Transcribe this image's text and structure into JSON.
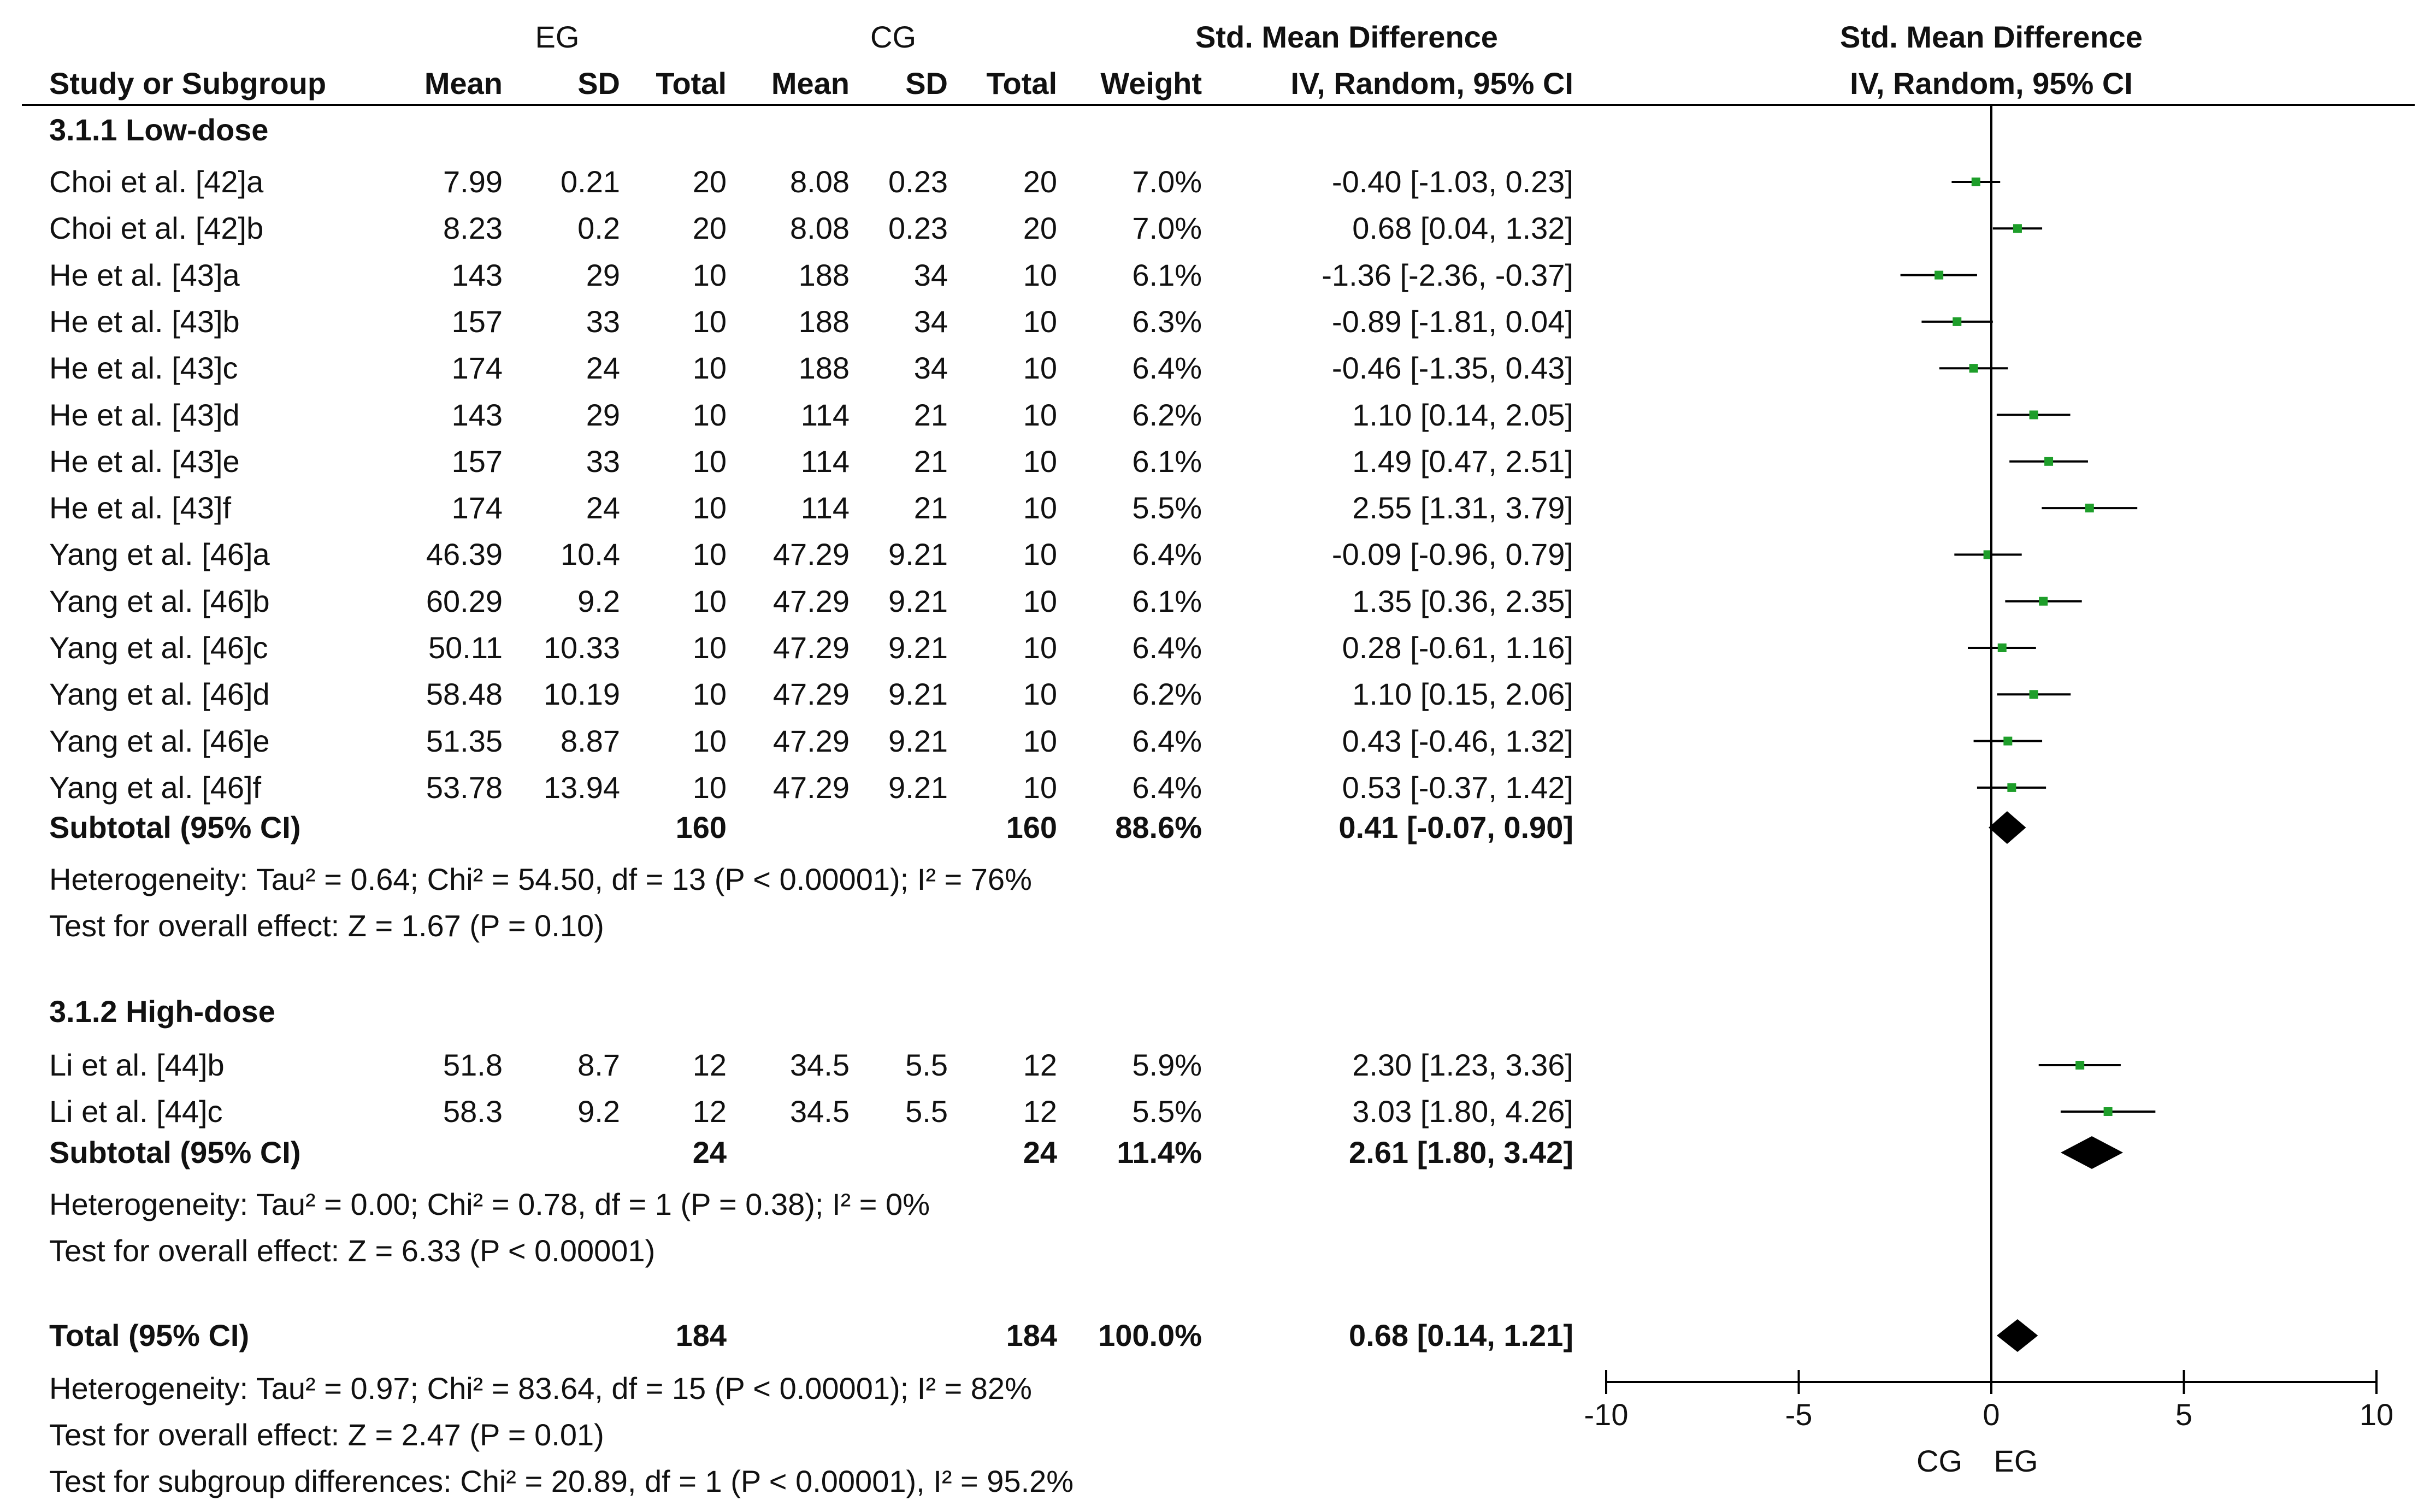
{
  "header": {
    "eg_label": "EG",
    "cg_label": "CG",
    "table_effect_title": "Std. Mean Difference",
    "table_effect_subtitle": "IV, Random, 95% CI",
    "plot_title": "Std. Mean Difference",
    "plot_subtitle": "IV, Random, 95% CI",
    "columns": [
      "Study or Subgroup",
      "Mean",
      "SD",
      "Total",
      "Mean",
      "SD",
      "Total",
      "Weight"
    ]
  },
  "groups": [
    {
      "label": "3.1.1 Low-dose",
      "studies": [
        {
          "name": "Choi et al. [42]a",
          "eg_mean": "7.99",
          "eg_sd": "0.21",
          "eg_total": "20",
          "cg_mean": "8.08",
          "cg_sd": "0.23",
          "cg_total": "20",
          "weight": "7.0%",
          "ci_text": "-0.40 [-1.03, 0.23]",
          "smd": -0.4,
          "lo": -1.03,
          "hi": 0.23
        },
        {
          "name": "Choi et al.  [42]b",
          "eg_mean": "8.23",
          "eg_sd": "0.2",
          "eg_total": "20",
          "cg_mean": "8.08",
          "cg_sd": "0.23",
          "cg_total": "20",
          "weight": "7.0%",
          "ci_text": "0.68 [0.04, 1.32]",
          "smd": 0.68,
          "lo": 0.04,
          "hi": 1.32
        },
        {
          "name": "He et al. [43]a",
          "eg_mean": "143",
          "eg_sd": "29",
          "eg_total": "10",
          "cg_mean": "188",
          "cg_sd": "34",
          "cg_total": "10",
          "weight": "6.1%",
          "ci_text": "-1.36 [-2.36, -0.37]",
          "smd": -1.36,
          "lo": -2.36,
          "hi": -0.37
        },
        {
          "name": "He et al. [43]b",
          "eg_mean": "157",
          "eg_sd": "33",
          "eg_total": "10",
          "cg_mean": "188",
          "cg_sd": "34",
          "cg_total": "10",
          "weight": "6.3%",
          "ci_text": "-0.89 [-1.81, 0.04]",
          "smd": -0.89,
          "lo": -1.81,
          "hi": 0.04
        },
        {
          "name": "He et al. [43]c",
          "eg_mean": "174",
          "eg_sd": "24",
          "eg_total": "10",
          "cg_mean": "188",
          "cg_sd": "34",
          "cg_total": "10",
          "weight": "6.4%",
          "ci_text": "-0.46 [-1.35, 0.43]",
          "smd": -0.46,
          "lo": -1.35,
          "hi": 0.43
        },
        {
          "name": "He et al. [43]d",
          "eg_mean": "143",
          "eg_sd": "29",
          "eg_total": "10",
          "cg_mean": "114",
          "cg_sd": "21",
          "cg_total": "10",
          "weight": "6.2%",
          "ci_text": "1.10 [0.14, 2.05]",
          "smd": 1.1,
          "lo": 0.14,
          "hi": 2.05
        },
        {
          "name": "He et al. [43]e",
          "eg_mean": "157",
          "eg_sd": "33",
          "eg_total": "10",
          "cg_mean": "114",
          "cg_sd": "21",
          "cg_total": "10",
          "weight": "6.1%",
          "ci_text": "1.49 [0.47, 2.51]",
          "smd": 1.49,
          "lo": 0.47,
          "hi": 2.51
        },
        {
          "name": "He et al. [43]f",
          "eg_mean": "174",
          "eg_sd": "24",
          "eg_total": "10",
          "cg_mean": "114",
          "cg_sd": "21",
          "cg_total": "10",
          "weight": "5.5%",
          "ci_text": "2.55 [1.31, 3.79]",
          "smd": 2.55,
          "lo": 1.31,
          "hi": 3.79
        },
        {
          "name": "Yang et al. [46]a",
          "eg_mean": "46.39",
          "eg_sd": "10.4",
          "eg_total": "10",
          "cg_mean": "47.29",
          "cg_sd": "9.21",
          "cg_total": "10",
          "weight": "6.4%",
          "ci_text": "-0.09 [-0.96, 0.79]",
          "smd": -0.09,
          "lo": -0.96,
          "hi": 0.79
        },
        {
          "name": "Yang et al. [46]b",
          "eg_mean": "60.29",
          "eg_sd": "9.2",
          "eg_total": "10",
          "cg_mean": "47.29",
          "cg_sd": "9.21",
          "cg_total": "10",
          "weight": "6.1%",
          "ci_text": "1.35 [0.36, 2.35]",
          "smd": 1.35,
          "lo": 0.36,
          "hi": 2.35
        },
        {
          "name": "Yang et al. [46]c",
          "eg_mean": "50.11",
          "eg_sd": "10.33",
          "eg_total": "10",
          "cg_mean": "47.29",
          "cg_sd": "9.21",
          "cg_total": "10",
          "weight": "6.4%",
          "ci_text": "0.28 [-0.61, 1.16]",
          "smd": 0.28,
          "lo": -0.61,
          "hi": 1.16
        },
        {
          "name": "Yang et al. [46]d",
          "eg_mean": "58.48",
          "eg_sd": "10.19",
          "eg_total": "10",
          "cg_mean": "47.29",
          "cg_sd": "9.21",
          "cg_total": "10",
          "weight": "6.2%",
          "ci_text": "1.10 [0.15, 2.06]",
          "smd": 1.1,
          "lo": 0.15,
          "hi": 2.06
        },
        {
          "name": "Yang et al. [46]e",
          "eg_mean": "51.35",
          "eg_sd": "8.87",
          "eg_total": "10",
          "cg_mean": "47.29",
          "cg_sd": "9.21",
          "cg_total": "10",
          "weight": "6.4%",
          "ci_text": "0.43 [-0.46, 1.32]",
          "smd": 0.43,
          "lo": -0.46,
          "hi": 1.32
        },
        {
          "name": "Yang et al. [46]f",
          "eg_mean": "53.78",
          "eg_sd": "13.94",
          "eg_total": "10",
          "cg_mean": "47.29",
          "cg_sd": "9.21",
          "cg_total": "10",
          "weight": "6.4%",
          "ci_text": "0.53 [-0.37, 1.42]",
          "smd": 0.53,
          "lo": -0.37,
          "hi": 1.42
        }
      ],
      "subtotal": {
        "label": "Subtotal (95% CI)",
        "eg_total": "160",
        "cg_total": "160",
        "weight": "88.6%",
        "ci_text": "0.41 [-0.07, 0.90]",
        "smd": 0.41,
        "lo": -0.07,
        "hi": 0.9
      },
      "heterogeneity": "Heterogeneity: Tau² = 0.64; Chi² = 54.50, df = 13 (P < 0.00001); I² = 76%",
      "overall": "Test for overall effect: Z = 1.67 (P = 0.10)"
    },
    {
      "label": "3.1.2 High-dose",
      "studies": [
        {
          "name": "Li et al. [44]b",
          "eg_mean": "51.8",
          "eg_sd": "8.7",
          "eg_total": "12",
          "cg_mean": "34.5",
          "cg_sd": "5.5",
          "cg_total": "12",
          "weight": "5.9%",
          "ci_text": "2.30 [1.23, 3.36]",
          "smd": 2.3,
          "lo": 1.23,
          "hi": 3.36
        },
        {
          "name": "Li et al. [44]c",
          "eg_mean": "58.3",
          "eg_sd": "9.2",
          "eg_total": "12",
          "cg_mean": "34.5",
          "cg_sd": "5.5",
          "cg_total": "12",
          "weight": "5.5%",
          "ci_text": "3.03 [1.80, 4.26]",
          "smd": 3.03,
          "lo": 1.8,
          "hi": 4.26
        }
      ],
      "subtotal": {
        "label": "Subtotal (95% CI)",
        "eg_total": "24",
        "cg_total": "24",
        "weight": "11.4%",
        "ci_text": "2.61 [1.80, 3.42]",
        "smd": 2.61,
        "lo": 1.8,
        "hi": 3.42
      },
      "heterogeneity": "Heterogeneity: Tau² = 0.00; Chi² = 0.78, df = 1 (P = 0.38); I² = 0%",
      "overall": "Test for overall effect: Z = 6.33 (P < 0.00001)"
    }
  ],
  "total": {
    "label": "Total (95% CI)",
    "eg_total": "184",
    "cg_total": "184",
    "weight": "100.0%",
    "ci_text": "0.68 [0.14, 1.21]",
    "smd": 0.68,
    "lo": 0.14,
    "hi": 1.21
  },
  "total_heterogeneity": "Heterogeneity: Tau² = 0.97; Chi² = 83.64, df = 15 (P < 0.00001); I² = 82%",
  "total_overall": "Test for overall effect: Z = 2.47 (P = 0.01)",
  "subgroup_diff": "Test for subgroup differences: Chi² = 20.89, df = 1 (P < 0.00001), I² = 95.2%",
  "axis": {
    "ticks": [
      -10,
      -5,
      0,
      5,
      10
    ],
    "tick_labels": [
      "-10",
      "-5",
      "0",
      "5",
      "10"
    ],
    "left_label": "CG",
    "right_label": "EG"
  },
  "colors": {
    "point": "#1e9e2a",
    "line": "#000000",
    "diamond": "#000000"
  },
  "chart_data": {
    "type": "forest",
    "title": "Std. Mean Difference",
    "subtitle": "IV, Random, 95% CI",
    "xlim": [
      -10,
      10
    ],
    "xticks": [
      -10,
      -5,
      0,
      5,
      10
    ],
    "xlabel_left": "CG",
    "xlabel_right": "EG",
    "series": [
      {
        "name": "Choi et al. [42]a",
        "smd": -0.4,
        "lo": -1.03,
        "hi": 0.23,
        "weight": 7.0
      },
      {
        "name": "Choi et al.  [42]b",
        "smd": 0.68,
        "lo": 0.04,
        "hi": 1.32,
        "weight": 7.0
      },
      {
        "name": "He et al. [43]a",
        "smd": -1.36,
        "lo": -2.36,
        "hi": -0.37,
        "weight": 6.1
      },
      {
        "name": "He et al. [43]b",
        "smd": -0.89,
        "lo": -1.81,
        "hi": 0.04,
        "weight": 6.3
      },
      {
        "name": "He et al. [43]c",
        "smd": -0.46,
        "lo": -1.35,
        "hi": 0.43,
        "weight": 6.4
      },
      {
        "name": "He et al. [43]d",
        "smd": 1.1,
        "lo": 0.14,
        "hi": 2.05,
        "weight": 6.2
      },
      {
        "name": "He et al. [43]e",
        "smd": 1.49,
        "lo": 0.47,
        "hi": 2.51,
        "weight": 6.1
      },
      {
        "name": "He et al. [43]f",
        "smd": 2.55,
        "lo": 1.31,
        "hi": 3.79,
        "weight": 5.5
      },
      {
        "name": "Yang et al. [46]a",
        "smd": -0.09,
        "lo": -0.96,
        "hi": 0.79,
        "weight": 6.4
      },
      {
        "name": "Yang et al. [46]b",
        "smd": 1.35,
        "lo": 0.36,
        "hi": 2.35,
        "weight": 6.1
      },
      {
        "name": "Yang et al. [46]c",
        "smd": 0.28,
        "lo": -0.61,
        "hi": 1.16,
        "weight": 6.4
      },
      {
        "name": "Yang et al. [46]d",
        "smd": 1.1,
        "lo": 0.15,
        "hi": 2.06,
        "weight": 6.2
      },
      {
        "name": "Yang et al. [46]e",
        "smd": 0.43,
        "lo": -0.46,
        "hi": 1.32,
        "weight": 6.4
      },
      {
        "name": "Yang et al. [46]f",
        "smd": 0.53,
        "lo": -0.37,
        "hi": 1.42,
        "weight": 6.4
      },
      {
        "name": "Li et al. [44]b",
        "smd": 2.3,
        "lo": 1.23,
        "hi": 3.36,
        "weight": 5.9
      },
      {
        "name": "Li et al. [44]c",
        "smd": 3.03,
        "lo": 1.8,
        "hi": 4.26,
        "weight": 5.5
      }
    ],
    "subtotals": [
      {
        "name": "Low-dose",
        "smd": 0.41,
        "lo": -0.07,
        "hi": 0.9
      },
      {
        "name": "High-dose",
        "smd": 2.61,
        "lo": 1.8,
        "hi": 3.42
      }
    ],
    "overall": {
      "smd": 0.68,
      "lo": 0.14,
      "hi": 1.21
    }
  }
}
